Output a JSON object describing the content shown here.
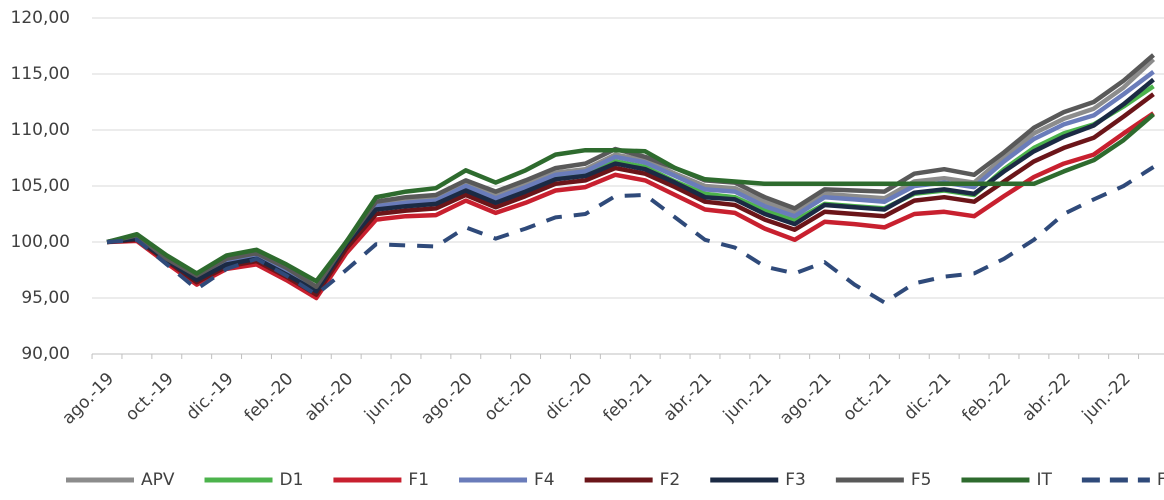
{
  "chart_data": {
    "type": "line",
    "categories": [
      "ago.-19",
      null,
      "oct.-19",
      null,
      "dic.-19",
      null,
      "feb.-20",
      null,
      "abr.-20",
      null,
      "jun.-20",
      null,
      "ago.-20",
      null,
      "oct.-20",
      null,
      "dic.-20",
      null,
      "feb.-21",
      null,
      "abr.-21",
      null,
      "jun.-21",
      null,
      "ago.-21",
      null,
      "oct.-21",
      null,
      "dic.-21",
      null,
      "feb.-22",
      null,
      "abr.-22",
      null,
      "jun.-22",
      null
    ],
    "ylim": [
      90,
      120
    ],
    "yticks": [
      {
        "value": 90,
        "label": "90,00"
      },
      {
        "value": 95,
        "label": "95,00"
      },
      {
        "value": 100,
        "label": "100,00"
      },
      {
        "value": 105,
        "label": "105,00"
      },
      {
        "value": 110,
        "label": "110,00"
      },
      {
        "value": 115,
        "label": "115,00"
      },
      {
        "value": 120,
        "label": "120,00"
      }
    ],
    "grid": true,
    "legend": "bottom",
    "series": [
      {
        "name": "APV",
        "color": "#8c8c8c",
        "values": [
          100,
          100.5,
          98.6,
          96.9,
          98.4,
          98.9,
          97.5,
          96,
          100,
          103.4,
          103.7,
          103.9,
          105.2,
          104.1,
          105.1,
          106.2,
          106.5,
          107.8,
          107.3,
          106.1,
          105,
          104.8,
          103.6,
          102.6,
          104.3,
          104.1,
          103.9,
          105.4,
          105.7,
          105.3,
          107.6,
          109.7,
          111,
          111.9,
          113.8,
          116.3
        ]
      },
      {
        "name": "D1",
        "color": "#4cb34c",
        "values": [
          100,
          100.4,
          98.5,
          96.8,
          98.2,
          98.7,
          97.3,
          95.8,
          100,
          103.1,
          103.4,
          103.6,
          104.8,
          103.7,
          104.7,
          105.8,
          106.1,
          107.2,
          106.7,
          105.4,
          104.3,
          104,
          102.8,
          101.9,
          103.4,
          103.2,
          103,
          104.3,
          104.6,
          104.2,
          106.5,
          108.4,
          109.7,
          110.5,
          112.1,
          113.9
        ]
      },
      {
        "name": "F1",
        "color": "#c8202f",
        "values": [
          100,
          100.1,
          98.1,
          96.2,
          97.6,
          98,
          96.6,
          95,
          99,
          102,
          102.3,
          102.4,
          103.7,
          102.6,
          103.5,
          104.6,
          104.9,
          106,
          105.5,
          104.2,
          102.9,
          102.6,
          101.2,
          100.2,
          101.8,
          101.6,
          101.3,
          102.5,
          102.7,
          102.3,
          104.1,
          105.8,
          107,
          107.8,
          109.7,
          111.5
        ]
      },
      {
        "name": "F4",
        "color": "#6a7cba",
        "values": [
          100,
          100.5,
          98.5,
          96.8,
          98.3,
          98.8,
          97.4,
          95.9,
          100,
          103.2,
          103.5,
          103.7,
          105,
          103.9,
          104.9,
          106,
          106.3,
          107.6,
          107.1,
          105.9,
          104.7,
          104.5,
          103.2,
          102.3,
          104,
          103.8,
          103.6,
          105,
          105.3,
          104.9,
          107.2,
          109.2,
          110.5,
          111.3,
          113.2,
          115.2
        ]
      },
      {
        "name": "F2",
        "color": "#6b1519",
        "values": [
          100,
          100.2,
          98.3,
          96.4,
          97.8,
          98.3,
          96.9,
          95.3,
          99.4,
          102.5,
          102.8,
          103,
          104.2,
          103.1,
          104.1,
          105.2,
          105.5,
          106.6,
          106.1,
          104.9,
          103.6,
          103.3,
          102,
          101.1,
          102.7,
          102.5,
          102.3,
          103.7,
          104,
          103.6,
          105.4,
          107.2,
          108.4,
          109.3,
          111.2,
          113.2
        ]
      },
      {
        "name": "F3",
        "color": "#1b2a44",
        "values": [
          100,
          100.3,
          98.4,
          96.6,
          98,
          98.5,
          97.1,
          95.6,
          99.8,
          102.9,
          103.2,
          103.4,
          104.6,
          103.5,
          104.5,
          105.6,
          105.9,
          107,
          106.5,
          105.3,
          104,
          103.8,
          102.5,
          101.6,
          103.3,
          103.1,
          102.9,
          104.4,
          104.7,
          104.3,
          106.3,
          108.1,
          109.4,
          110.4,
          112.3,
          114.5
        ]
      },
      {
        "name": "F5",
        "color": "#595959",
        "values": [
          100,
          100.6,
          98.5,
          97,
          98.5,
          99,
          97.7,
          96,
          100,
          103.6,
          104,
          104.2,
          105.5,
          104.5,
          105.5,
          106.6,
          107,
          108.3,
          107.6,
          106.6,
          105.5,
          105.3,
          104,
          103,
          104.7,
          104.6,
          104.5,
          106.1,
          106.5,
          106,
          108,
          110.2,
          111.6,
          112.5,
          114.4,
          116.7
        ]
      },
      {
        "name": "IT",
        "color": "#2e6b2e",
        "values": [
          100,
          100.7,
          98.8,
          97.2,
          98.8,
          99.3,
          98,
          96.5,
          100,
          104,
          104.5,
          104.8,
          106.4,
          105.3,
          106.4,
          107.8,
          108.2,
          108.2,
          108.1,
          106.6,
          105.6,
          105.4,
          105.2,
          105.2,
          105.2,
          105.2,
          105.2,
          105.2,
          105.2,
          105.2,
          105.2,
          105.2,
          106.3,
          107.3,
          109.1,
          111.4
        ]
      },
      {
        "name": "FM Tipo",
        "color": "#2f4a7a",
        "line_style": "dashed",
        "values": [
          100,
          100.2,
          98,
          95.8,
          97.6,
          98.5,
          97,
          95.3,
          97.5,
          99.8,
          99.7,
          99.6,
          101.3,
          100.3,
          101.2,
          102.2,
          102.5,
          104.1,
          104.2,
          102.2,
          100.2,
          99.5,
          97.8,
          97.2,
          98.2,
          96.2,
          94.6,
          96.3,
          96.9,
          97.2,
          98.5,
          100.2,
          102.5,
          103.8,
          105,
          106.7
        ]
      }
    ]
  }
}
